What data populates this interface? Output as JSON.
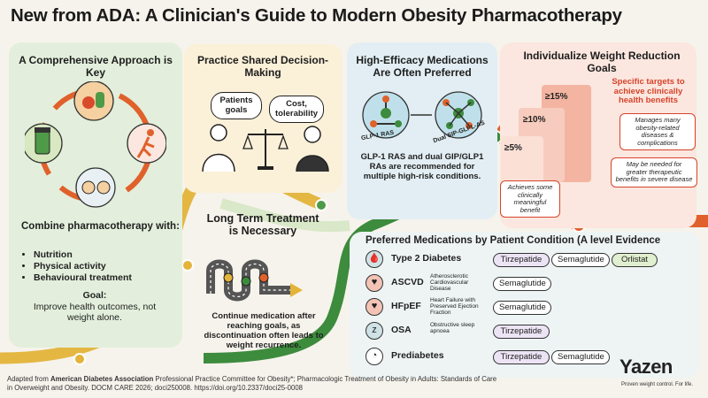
{
  "title": "New from ADA: A Clinician's Guide to Modern Obesity Pharmacotherapy",
  "panel1": {
    "title": "A Comprehensive Approach is Key",
    "intro": "Combine pharmacotherapy with:",
    "items": [
      "Nutrition",
      "Physical activity",
      "Behavioural treatment"
    ],
    "goal_label": "Goal:",
    "goal_text": "Improve health outcomes, not weight alone."
  },
  "panel2": {
    "title": "Practice Shared Decision-Making",
    "bubble1": "Patients goals",
    "bubble2": "Cost, tolerability"
  },
  "panel3": {
    "title": "High-Efficacy Medications Are Often Preferred",
    "mol1": "GLP-1 RAS",
    "mol2": "Dual SIP-GLPL-AS",
    "text": "GLP-1 RAS and dual GIP/GLP1 RAs are recommended for multiple high-risk conditions."
  },
  "panel4": {
    "title": "Individualize Weight Reduction Goals",
    "subtitle": "Specific targets to achieve clinically health benefits",
    "pct15": "≥15%",
    "pct10": "≥10%",
    "pct5": "≥5%",
    "box1": "Manages many obesity-related diseases & complications",
    "box2": "May be needed for greater therapeutic benefits in severe disease",
    "box3": "Achieves some clinically meaningful benefit"
  },
  "panel_long": {
    "title": "Long Term Treatment is Necessary",
    "text": "Continue medication after reaching goals, as discontinuation often leads to weight recurrence."
  },
  "meds": {
    "title": "Preferred Medications by Patient Condition (A level Evidence",
    "rows": [
      {
        "name": "Type 2 Diabetes",
        "desc": "",
        "icon": "glucose-meter-icon",
        "pills": [
          {
            "label": "Tirzepatide",
            "style": "purple"
          },
          {
            "label": "Semaglutide",
            "style": "white"
          },
          {
            "label": "Orlistat",
            "style": "green"
          }
        ]
      },
      {
        "name": "ASCVD",
        "desc": "Atherosclerotic Cardiovascular Disease",
        "icon": "heart-icon",
        "pills": [
          {
            "label": "Semaglutide",
            "style": "white"
          }
        ]
      },
      {
        "name": "HFpEF",
        "desc": "Heart Failure with Preserved Ejection Fraction",
        "icon": "heart-failure-icon",
        "pills": [
          {
            "label": "Semaglutide",
            "style": "white"
          }
        ]
      },
      {
        "name": "OSA",
        "desc": "Obstructive sleep apnoea",
        "icon": "sleep-icon",
        "pills": [
          {
            "label": "Tirzepatide",
            "style": "purple"
          }
        ]
      },
      {
        "name": "Prediabetes",
        "desc": "",
        "icon": "gauge-icon",
        "pills": [
          {
            "label": "Tirzepatide",
            "style": "purple"
          },
          {
            "label": "Semaglutide",
            "style": "white"
          }
        ]
      }
    ]
  },
  "footer": {
    "prefix": "Adapted from ",
    "org": "American Diabetes Association",
    "rest": " Professional Practice Committee for Obesity*; Pharmacologic Treatment of Obesity in Adults: Standards of Care in Overweight and Obesity. DOCM CARE 2026; doci250008. https://doi.org/10.2337/doci25-0008"
  },
  "brand": {
    "name": "Yazen",
    "slogan": "Proven weight control. For life."
  },
  "colors": {
    "orange_road": "#e0612b",
    "green_road": "#3d8b3d",
    "yellow_road": "#e3b33a",
    "accent_red": "#d7432b"
  }
}
